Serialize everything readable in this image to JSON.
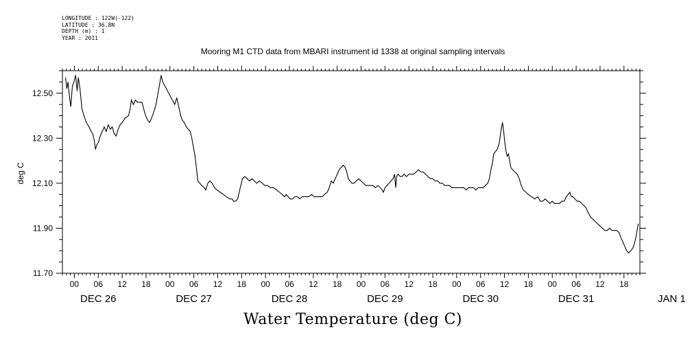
{
  "meta": {
    "longitude": "LONGITUDE : 122W(-122)",
    "latitude": "LATITUDE : 36.8N",
    "depth": "DEPTH (m) : 1",
    "year": "YEAR : 2011"
  },
  "chart_data": {
    "type": "line",
    "title": "Mooring M1 CTD data from MBARI instrument id 1338 at original sampling intervals",
    "xlabel": "Water Temperature (deg C)",
    "ylabel": "deg C",
    "ylim": [
      11.7,
      12.6
    ],
    "xlim_hours": [
      -3,
      142
    ],
    "yticks": [
      "12.50",
      "12.30",
      "12.10",
      "11.90",
      "11.70"
    ],
    "ytick_values": [
      12.5,
      12.3,
      12.1,
      11.9,
      11.7
    ],
    "hour_tick_labels": [
      "00",
      "06",
      "12",
      "18"
    ],
    "day_labels": [
      "DEC 26",
      "DEC 27",
      "DEC 28",
      "DEC 29",
      "DEC 30",
      "DEC 31",
      "JAN 1"
    ],
    "series": [
      {
        "values": [
          [
            -2.2,
            12.57
          ],
          [
            -1.9,
            12.52
          ],
          [
            -1.6,
            12.55
          ],
          [
            -1.2,
            12.48
          ],
          [
            -0.9,
            12.44
          ],
          [
            -0.5,
            12.53
          ],
          [
            -0.1,
            12.55
          ],
          [
            0.3,
            12.58
          ],
          [
            0.7,
            12.51
          ],
          [
            1.0,
            12.57
          ],
          [
            1.4,
            12.52
          ],
          [
            1.9,
            12.43
          ],
          [
            2.4,
            12.4
          ],
          [
            3.0,
            12.37
          ],
          [
            3.7,
            12.35
          ],
          [
            4.2,
            12.33
          ],
          [
            4.6,
            12.32
          ],
          [
            5.0,
            12.29
          ],
          [
            5.3,
            12.25
          ],
          [
            5.6,
            12.27
          ],
          [
            6.0,
            12.28
          ],
          [
            6.5,
            12.31
          ],
          [
            7.0,
            12.33
          ],
          [
            7.5,
            12.35
          ],
          [
            8.0,
            12.33
          ],
          [
            8.5,
            12.36
          ],
          [
            9.0,
            12.34
          ],
          [
            9.5,
            12.35
          ],
          [
            10.0,
            12.32
          ],
          [
            10.5,
            12.31
          ],
          [
            11.0,
            12.34
          ],
          [
            11.5,
            12.36
          ],
          [
            12.0,
            12.37
          ],
          [
            12.8,
            12.39
          ],
          [
            13.6,
            12.4
          ],
          [
            14.0,
            12.43
          ],
          [
            14.3,
            12.47
          ],
          [
            14.8,
            12.45
          ],
          [
            15.3,
            12.47
          ],
          [
            15.8,
            12.46
          ],
          [
            16.5,
            12.46
          ],
          [
            17.0,
            12.46
          ],
          [
            17.4,
            12.43
          ],
          [
            17.9,
            12.4
          ],
          [
            18.4,
            12.38
          ],
          [
            18.9,
            12.37
          ],
          [
            19.4,
            12.39
          ],
          [
            20.0,
            12.42
          ],
          [
            20.5,
            12.45
          ],
          [
            21.0,
            12.5
          ],
          [
            21.4,
            12.54
          ],
          [
            21.8,
            12.58
          ],
          [
            22.2,
            12.55
          ],
          [
            22.8,
            12.53
          ],
          [
            23.4,
            12.51
          ],
          [
            24.0,
            12.49
          ],
          [
            24.6,
            12.47
          ],
          [
            25.2,
            12.45
          ],
          [
            25.7,
            12.48
          ],
          [
            26.2,
            12.44
          ],
          [
            26.7,
            12.4
          ],
          [
            27.1,
            12.38
          ],
          [
            27.6,
            12.37
          ],
          [
            28.1,
            12.35
          ],
          [
            28.6,
            12.34
          ],
          [
            29.1,
            12.33
          ],
          [
            29.5,
            12.3
          ],
          [
            29.9,
            12.26
          ],
          [
            30.3,
            12.22
          ],
          [
            30.7,
            12.16
          ],
          [
            31.0,
            12.11
          ],
          [
            31.5,
            12.1
          ],
          [
            32.0,
            12.09
          ],
          [
            32.6,
            12.08
          ],
          [
            33.0,
            12.07
          ],
          [
            33.5,
            12.1
          ],
          [
            34.0,
            12.11
          ],
          [
            34.6,
            12.1
          ],
          [
            35.2,
            12.08
          ],
          [
            35.8,
            12.07
          ],
          [
            36.6,
            12.06
          ],
          [
            37.4,
            12.05
          ],
          [
            38.2,
            12.04
          ],
          [
            39.0,
            12.03
          ],
          [
            39.6,
            12.03
          ],
          [
            40.0,
            12.02
          ],
          [
            40.5,
            12.02
          ],
          [
            41.0,
            12.03
          ],
          [
            41.4,
            12.06
          ],
          [
            41.8,
            12.09
          ],
          [
            42.2,
            12.12
          ],
          [
            42.8,
            12.13
          ],
          [
            43.4,
            12.12
          ],
          [
            44.0,
            12.11
          ],
          [
            44.6,
            12.12
          ],
          [
            45.2,
            12.11
          ],
          [
            45.8,
            12.1
          ],
          [
            46.5,
            12.11
          ],
          [
            47.2,
            12.1
          ],
          [
            47.8,
            12.09
          ],
          [
            48.5,
            12.09
          ],
          [
            49.2,
            12.08
          ],
          [
            50.0,
            12.08
          ],
          [
            50.8,
            12.07
          ],
          [
            51.5,
            12.06
          ],
          [
            52.2,
            12.05
          ],
          [
            52.8,
            12.04
          ],
          [
            53.2,
            12.05
          ],
          [
            53.7,
            12.04
          ],
          [
            54.2,
            12.03
          ],
          [
            54.8,
            12.03
          ],
          [
            55.4,
            12.04
          ],
          [
            56.0,
            12.04
          ],
          [
            56.6,
            12.03
          ],
          [
            57.2,
            12.04
          ],
          [
            58.0,
            12.04
          ],
          [
            58.8,
            12.04
          ],
          [
            59.6,
            12.05
          ],
          [
            60.2,
            12.04
          ],
          [
            60.8,
            12.04
          ],
          [
            61.5,
            12.04
          ],
          [
            62.2,
            12.04
          ],
          [
            62.8,
            12.05
          ],
          [
            63.5,
            12.06
          ],
          [
            64.0,
            12.08
          ],
          [
            64.5,
            12.11
          ],
          [
            65.0,
            12.1
          ],
          [
            65.5,
            12.12
          ],
          [
            66.0,
            12.14
          ],
          [
            66.5,
            12.16
          ],
          [
            67.0,
            12.17
          ],
          [
            67.5,
            12.18
          ],
          [
            68.0,
            12.17
          ],
          [
            68.4,
            12.15
          ],
          [
            68.8,
            12.12
          ],
          [
            69.2,
            12.11
          ],
          [
            69.7,
            12.1
          ],
          [
            70.2,
            12.1
          ],
          [
            70.8,
            12.11
          ],
          [
            71.4,
            12.12
          ],
          [
            72.0,
            12.11
          ],
          [
            72.6,
            12.1
          ],
          [
            73.2,
            12.09
          ],
          [
            73.8,
            12.09
          ],
          [
            74.4,
            12.09
          ],
          [
            75.0,
            12.09
          ],
          [
            75.6,
            12.08
          ],
          [
            76.2,
            12.09
          ],
          [
            76.8,
            12.08
          ],
          [
            77.3,
            12.07
          ],
          [
            77.6,
            12.06
          ],
          [
            78.0,
            12.08
          ],
          [
            78.5,
            12.09
          ],
          [
            79.0,
            12.1
          ],
          [
            79.5,
            12.11
          ],
          [
            80.0,
            12.12
          ],
          [
            80.4,
            12.14
          ],
          [
            80.7,
            12.08
          ],
          [
            80.9,
            12.13
          ],
          [
            81.3,
            12.14
          ],
          [
            81.8,
            12.13
          ],
          [
            82.3,
            12.13
          ],
          [
            82.8,
            12.14
          ],
          [
            83.4,
            12.13
          ],
          [
            84.0,
            12.14
          ],
          [
            84.6,
            12.14
          ],
          [
            85.2,
            12.14
          ],
          [
            85.8,
            12.15
          ],
          [
            86.4,
            12.16
          ],
          [
            87.0,
            12.15
          ],
          [
            87.6,
            12.15
          ],
          [
            88.2,
            12.14
          ],
          [
            88.8,
            12.13
          ],
          [
            89.4,
            12.12
          ],
          [
            90.0,
            12.12
          ],
          [
            90.6,
            12.11
          ],
          [
            91.2,
            12.11
          ],
          [
            91.8,
            12.1
          ],
          [
            92.4,
            12.1
          ],
          [
            93.0,
            12.09
          ],
          [
            93.6,
            12.09
          ],
          [
            94.2,
            12.09
          ],
          [
            94.8,
            12.08
          ],
          [
            95.4,
            12.08
          ],
          [
            96.0,
            12.08
          ],
          [
            96.6,
            12.08
          ],
          [
            97.2,
            12.08
          ],
          [
            97.8,
            12.08
          ],
          [
            98.4,
            12.07
          ],
          [
            99.0,
            12.08
          ],
          [
            99.6,
            12.08
          ],
          [
            100.2,
            12.08
          ],
          [
            100.8,
            12.07
          ],
          [
            101.4,
            12.08
          ],
          [
            102.0,
            12.08
          ],
          [
            102.6,
            12.08
          ],
          [
            103.2,
            12.09
          ],
          [
            103.8,
            12.1
          ],
          [
            104.2,
            12.12
          ],
          [
            104.6,
            12.16
          ],
          [
            105.0,
            12.19
          ],
          [
            105.3,
            12.23
          ],
          [
            105.7,
            12.24
          ],
          [
            106.2,
            12.25
          ],
          [
            106.7,
            12.28
          ],
          [
            107.1,
            12.33
          ],
          [
            107.5,
            12.37
          ],
          [
            107.8,
            12.33
          ],
          [
            108.1,
            12.28
          ],
          [
            108.4,
            12.24
          ],
          [
            108.7,
            12.22
          ],
          [
            109.0,
            12.23
          ],
          [
            109.3,
            12.2
          ],
          [
            109.6,
            12.17
          ],
          [
            110.0,
            12.16
          ],
          [
            110.6,
            12.15
          ],
          [
            111.2,
            12.14
          ],
          [
            111.7,
            12.12
          ],
          [
            112.2,
            12.09
          ],
          [
            112.7,
            12.07
          ],
          [
            113.4,
            12.06
          ],
          [
            114.0,
            12.05
          ],
          [
            114.8,
            12.04
          ],
          [
            115.6,
            12.03
          ],
          [
            116.4,
            12.04
          ],
          [
            117.0,
            12.02
          ],
          [
            117.6,
            12.02
          ],
          [
            118.2,
            12.03
          ],
          [
            118.8,
            12.02
          ],
          [
            119.4,
            12.01
          ],
          [
            120.0,
            12.02
          ],
          [
            120.6,
            12.01
          ],
          [
            121.2,
            12.01
          ],
          [
            121.8,
            12.01
          ],
          [
            122.4,
            12.02
          ],
          [
            123.0,
            12.02
          ],
          [
            123.5,
            12.04
          ],
          [
            124.0,
            12.05
          ],
          [
            124.4,
            12.06
          ],
          [
            124.8,
            12.04
          ],
          [
            125.2,
            12.04
          ],
          [
            125.7,
            12.03
          ],
          [
            126.2,
            12.02
          ],
          [
            126.8,
            12.02
          ],
          [
            127.4,
            12.01
          ],
          [
            128.0,
            12.0
          ],
          [
            128.5,
            11.99
          ],
          [
            129.0,
            11.97
          ],
          [
            129.6,
            11.95
          ],
          [
            130.2,
            11.94
          ],
          [
            130.8,
            11.93
          ],
          [
            131.4,
            11.92
          ],
          [
            132.0,
            11.91
          ],
          [
            132.6,
            11.9
          ],
          [
            133.2,
            11.89
          ],
          [
            133.8,
            11.89
          ],
          [
            134.4,
            11.9
          ],
          [
            135.0,
            11.89
          ],
          [
            135.6,
            11.89
          ],
          [
            136.2,
            11.89
          ],
          [
            136.8,
            11.88
          ],
          [
            137.2,
            11.86
          ],
          [
            137.7,
            11.84
          ],
          [
            138.2,
            11.82
          ],
          [
            138.7,
            11.8
          ],
          [
            139.2,
            11.79
          ],
          [
            139.7,
            11.8
          ],
          [
            140.2,
            11.81
          ],
          [
            140.6,
            11.83
          ],
          [
            141.0,
            11.86
          ],
          [
            141.3,
            11.89
          ],
          [
            141.6,
            11.92
          ]
        ]
      }
    ]
  }
}
